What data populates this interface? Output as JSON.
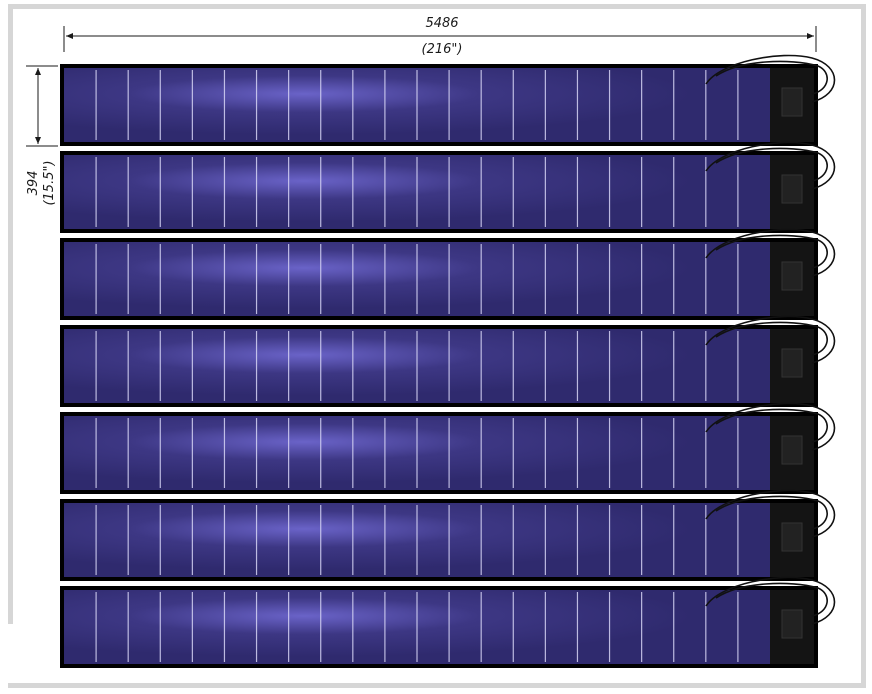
{
  "dimensions": {
    "width_mm": "5486",
    "width_in": "(216\")",
    "height_mm": "394",
    "height_in": "(15.5\")"
  },
  "panel_count": 7,
  "cells_per_panel": 22,
  "colors": {
    "panel_dark": "#2f2a6e",
    "panel_light": "#7c74d6",
    "cell_line": "#d6d4f5",
    "frame": "#000000",
    "junction_box": "#141414",
    "border": "#d6d6d6"
  }
}
